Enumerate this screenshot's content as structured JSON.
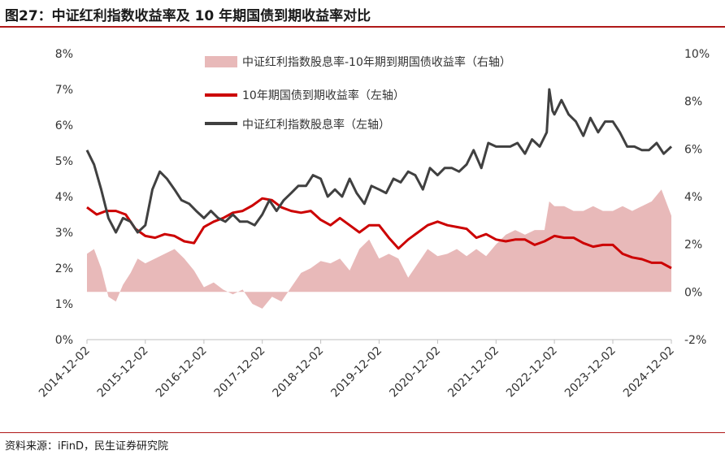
{
  "figure": {
    "title": "图27：中证红利指数收益率及 10 年期国债到期收益率对比",
    "source": "资料来源：iFinD，民生证券研究院"
  },
  "colors": {
    "accent": "#b01818",
    "spread_fill": "#e8b9b9",
    "yield_line": "#cc0000",
    "dividend_line": "#404040"
  },
  "chart_data": {
    "type": "line",
    "title": "图27：中证红利指数收益率及 10 年期国债到期收益率对比",
    "x_tick_labels": [
      "2014-12-02",
      "2015-12-02",
      "2016-12-02",
      "2017-12-02",
      "2018-12-02",
      "2019-12-02",
      "2020-12-02",
      "2021-12-02",
      "2022-12-02",
      "2023-12-02",
      "2024-12-02"
    ],
    "x_range": [
      "2014-12-02",
      "2024-12-02"
    ],
    "y_left": {
      "ticks": [
        "0%",
        "1%",
        "2%",
        "3%",
        "4%",
        "5%",
        "6%",
        "7%",
        "8%"
      ],
      "range": [
        0,
        8
      ]
    },
    "y_right": {
      "ticks": [
        "-2%",
        "0%",
        "2%",
        "4%",
        "6%",
        "8%",
        "10%"
      ],
      "range": [
        -2,
        10
      ]
    },
    "legend_position": "top-center",
    "grid": false,
    "series": [
      {
        "name": "中证红利指数股息率-10年期到期国债收益率（右轴）",
        "type": "area",
        "axis": "right",
        "unit": "%",
        "x": [
          "2014-12-02",
          "2015-01-15",
          "2015-03-01",
          "2015-04-15",
          "2015-06-01",
          "2015-07-15",
          "2015-09-01",
          "2015-10-15",
          "2015-12-02",
          "2016-02-01",
          "2016-04-01",
          "2016-06-01",
          "2016-08-01",
          "2016-10-01",
          "2016-12-02",
          "2017-02-01",
          "2017-04-01",
          "2017-06-01",
          "2017-08-01",
          "2017-10-01",
          "2017-12-02",
          "2018-02-01",
          "2018-04-01",
          "2018-06-01",
          "2018-08-01",
          "2018-10-01",
          "2018-12-02",
          "2019-02-01",
          "2019-04-01",
          "2019-06-01",
          "2019-08-01",
          "2019-10-01",
          "2019-12-02",
          "2020-02-01",
          "2020-04-01",
          "2020-06-01",
          "2020-08-01",
          "2020-10-01",
          "2020-12-02",
          "2021-02-01",
          "2021-04-01",
          "2021-06-01",
          "2021-08-01",
          "2021-10-01",
          "2021-12-02",
          "2022-02-01",
          "2022-04-01",
          "2022-06-01",
          "2022-08-01",
          "2022-10-01",
          "2022-10-31",
          "2022-12-02",
          "2023-02-01",
          "2023-04-01",
          "2023-06-01",
          "2023-08-01",
          "2023-10-01",
          "2023-12-02",
          "2024-02-01",
          "2024-04-01",
          "2024-06-01",
          "2024-08-01",
          "2024-10-01",
          "2024-12-02"
        ],
        "values": [
          1.6,
          1.8,
          1.0,
          -0.2,
          -0.4,
          0.3,
          0.8,
          1.4,
          1.2,
          1.4,
          1.6,
          1.8,
          1.4,
          0.9,
          0.2,
          0.4,
          0.1,
          -0.1,
          0.1,
          -0.5,
          -0.7,
          -0.2,
          -0.4,
          0.2,
          0.8,
          1.0,
          1.3,
          1.2,
          1.4,
          0.9,
          1.8,
          2.2,
          1.4,
          1.6,
          1.4,
          0.6,
          1.2,
          1.8,
          1.5,
          1.6,
          1.8,
          1.5,
          1.8,
          1.5,
          2.0,
          2.4,
          2.6,
          2.4,
          2.6,
          2.6,
          3.8,
          3.6,
          3.6,
          3.4,
          3.4,
          3.6,
          3.4,
          3.4,
          3.6,
          3.4,
          3.6,
          3.8,
          4.3,
          3.2
        ]
      },
      {
        "name": "10年期国债到期收益率（左轴）",
        "type": "line",
        "axis": "left",
        "unit": "%",
        "x": [
          "2014-12-02",
          "2015-02-01",
          "2015-04-01",
          "2015-06-01",
          "2015-08-01",
          "2015-10-01",
          "2015-12-02",
          "2016-02-01",
          "2016-04-01",
          "2016-06-01",
          "2016-08-01",
          "2016-10-01",
          "2016-12-02",
          "2017-02-01",
          "2017-04-01",
          "2017-06-01",
          "2017-08-01",
          "2017-10-01",
          "2017-12-02",
          "2018-02-01",
          "2018-04-01",
          "2018-06-01",
          "2018-08-01",
          "2018-10-01",
          "2018-12-02",
          "2019-02-01",
          "2019-04-01",
          "2019-06-01",
          "2019-08-01",
          "2019-10-01",
          "2019-12-02",
          "2020-02-01",
          "2020-04-01",
          "2020-06-01",
          "2020-08-01",
          "2020-10-01",
          "2020-12-02",
          "2021-02-01",
          "2021-04-01",
          "2021-06-01",
          "2021-08-01",
          "2021-10-01",
          "2021-12-02",
          "2022-02-01",
          "2022-04-01",
          "2022-06-01",
          "2022-08-01",
          "2022-10-01",
          "2022-12-02",
          "2023-02-01",
          "2023-04-01",
          "2023-06-01",
          "2023-08-01",
          "2023-10-01",
          "2023-12-02",
          "2024-02-01",
          "2024-04-01",
          "2024-06-01",
          "2024-08-01",
          "2024-10-01",
          "2024-12-02"
        ],
        "values": [
          3.7,
          3.5,
          3.6,
          3.6,
          3.5,
          3.1,
          2.9,
          2.85,
          2.95,
          2.9,
          2.75,
          2.7,
          3.15,
          3.3,
          3.4,
          3.55,
          3.6,
          3.75,
          3.95,
          3.9,
          3.7,
          3.6,
          3.55,
          3.6,
          3.35,
          3.2,
          3.4,
          3.2,
          3.0,
          3.2,
          3.2,
          2.85,
          2.55,
          2.8,
          3.0,
          3.2,
          3.3,
          3.2,
          3.15,
          3.1,
          2.85,
          2.95,
          2.8,
          2.75,
          2.8,
          2.8,
          2.65,
          2.75,
          2.9,
          2.85,
          2.85,
          2.7,
          2.6,
          2.65,
          2.65,
          2.4,
          2.3,
          2.25,
          2.15,
          2.15,
          2.0
        ]
      },
      {
        "name": "中证红利指数股息率（左轴）",
        "type": "line",
        "axis": "left",
        "unit": "%",
        "x": [
          "2014-12-02",
          "2015-01-15",
          "2015-03-01",
          "2015-04-15",
          "2015-06-01",
          "2015-07-15",
          "2015-09-01",
          "2015-10-15",
          "2015-12-02",
          "2016-01-15",
          "2016-03-01",
          "2016-04-15",
          "2016-06-01",
          "2016-07-15",
          "2016-09-01",
          "2016-10-15",
          "2016-12-02",
          "2017-01-15",
          "2017-03-01",
          "2017-04-15",
          "2017-06-01",
          "2017-07-15",
          "2017-09-01",
          "2017-10-15",
          "2017-12-02",
          "2018-01-15",
          "2018-03-01",
          "2018-04-15",
          "2018-06-01",
          "2018-07-15",
          "2018-09-01",
          "2018-10-15",
          "2018-12-02",
          "2019-01-15",
          "2019-03-01",
          "2019-04-15",
          "2019-06-01",
          "2019-07-15",
          "2019-09-01",
          "2019-10-15",
          "2019-12-02",
          "2020-01-15",
          "2020-03-01",
          "2020-04-15",
          "2020-06-01",
          "2020-07-15",
          "2020-09-01",
          "2020-10-15",
          "2020-12-02",
          "2021-01-15",
          "2021-03-01",
          "2021-04-15",
          "2021-06-01",
          "2021-07-15",
          "2021-09-01",
          "2021-10-15",
          "2021-12-02",
          "2022-01-15",
          "2022-03-01",
          "2022-04-15",
          "2022-06-01",
          "2022-07-15",
          "2022-09-01",
          "2022-10-15",
          "2022-10-31",
          "2022-11-20",
          "2022-12-02",
          "2023-01-15",
          "2023-03-01",
          "2023-04-15",
          "2023-06-01",
          "2023-07-15",
          "2023-09-01",
          "2023-10-15",
          "2023-12-02",
          "2024-01-15",
          "2024-03-01",
          "2024-04-15",
          "2024-06-01",
          "2024-07-15",
          "2024-09-01",
          "2024-10-15",
          "2024-12-02"
        ],
        "values": [
          5.3,
          4.9,
          4.2,
          3.4,
          3.0,
          3.4,
          3.3,
          3.0,
          3.2,
          4.2,
          4.7,
          4.5,
          4.2,
          3.9,
          3.8,
          3.6,
          3.4,
          3.6,
          3.4,
          3.3,
          3.5,
          3.3,
          3.3,
          3.2,
          3.5,
          3.9,
          3.6,
          3.9,
          4.1,
          4.3,
          4.3,
          4.6,
          4.5,
          4.0,
          4.2,
          4.0,
          4.5,
          4.1,
          3.8,
          4.3,
          4.2,
          4.1,
          4.5,
          4.4,
          4.7,
          4.6,
          4.2,
          4.8,
          4.6,
          4.8,
          4.8,
          4.7,
          4.9,
          5.3,
          4.8,
          5.5,
          5.4,
          5.4,
          5.4,
          5.5,
          5.2,
          5.6,
          5.4,
          5.8,
          7.0,
          6.4,
          6.3,
          6.7,
          6.3,
          6.1,
          5.7,
          6.2,
          5.8,
          6.1,
          6.1,
          5.8,
          5.4,
          5.4,
          5.3,
          5.3,
          5.5,
          5.2,
          5.4
        ]
      }
    ]
  }
}
